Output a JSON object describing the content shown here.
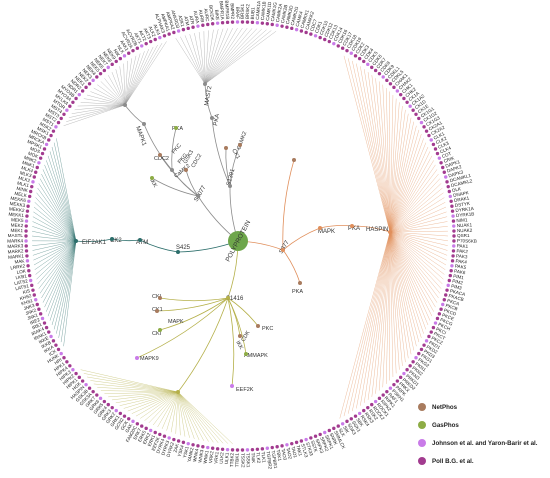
{
  "colors": {
    "NetPhos": "#a87b5e",
    "GasPhos": "#8dac45",
    "Johnson": "#c97be8",
    "Poll": "#a23b8f",
    "teal": "#2c6e6b",
    "orange": "#e08f5c",
    "olive": "#b5b04a",
    "gray": "#8c8c8c",
    "center": "#6ea64b"
  },
  "legend": [
    {
      "key": "NetPhos",
      "label": "NetPhos"
    },
    {
      "key": "GasPhos",
      "label": "GasPhos"
    },
    {
      "key": "Johnson",
      "label": "Johnson et al. and Yaron-Barir et al."
    },
    {
      "key": "Poll",
      "label": "Poll B.G. et al."
    }
  ],
  "center": {
    "label": "POLYPROTEIN"
  },
  "sites": {
    "S425": "S425",
    "S877": "S877",
    "S1416": "S1416",
    "S2077": "S2077",
    "S1391": "S1391"
  },
  "hubs": {
    "EIF2AK1": "EIF2AK1",
    "CK2": "CK2",
    "ATM": "ATM",
    "MAPK": "MAPK",
    "PKA": "PKA",
    "HASPIN": "HASPIN",
    "MAPK1": "MAPK1",
    "MAST2": "MAST2",
    "PKA_top": "PKA"
  },
  "inner_labels": [
    {
      "text": "CDC2",
      "cls": "NetPhos"
    },
    {
      "text": "PKA",
      "cls": "GasPhos"
    },
    {
      "text": "PKC",
      "cls": "NetPhos"
    },
    {
      "text": "PKG",
      "cls": "NetPhos"
    },
    {
      "text": "CaMK2",
      "cls": "NetPhos"
    },
    {
      "text": "GSK3",
      "cls": "NetPhos"
    },
    {
      "text": "CDC2",
      "cls": "NetPhos"
    },
    {
      "text": "IKK",
      "cls": "GasPhos"
    },
    {
      "text": "CK1",
      "cls": "NetPhos"
    },
    {
      "text": "CAMK2",
      "cls": "NetPhos"
    },
    {
      "text": "PKA",
      "cls": "NetPhos"
    },
    {
      "text": "CKI",
      "cls": "NetPhos"
    },
    {
      "text": "CK1",
      "cls": "GasPhos"
    },
    {
      "text": "MAPK",
      "cls": "GasPhos"
    },
    {
      "text": "CKI",
      "cls": "GasPhos"
    },
    {
      "text": "MAPK9",
      "cls": "Johnson"
    },
    {
      "text": "IKK",
      "cls": "NetPhos"
    },
    {
      "text": "CDK",
      "cls": "NetPhos"
    },
    {
      "text": "PKC",
      "cls": "NetPhos"
    },
    {
      "text": "AMMAPK",
      "cls": "GasPhos"
    },
    {
      "text": "EEF2K",
      "cls": "Johnson"
    }
  ],
  "ring_labels": [
    "NIM1",
    "NUAK1",
    "NUAK2",
    "QSR1",
    "P70S6KB",
    "PAK1",
    "PAK2",
    "PAK3",
    "PAK4",
    "PAK5",
    "PAK6",
    "PIM1",
    "PIM2",
    "PIM3",
    "PKACA",
    "PKACB",
    "PKCA",
    "PKCB",
    "PKCD",
    "PKCE",
    "PKCG",
    "PKCH",
    "PKCI",
    "PKCT",
    "PKCZ",
    "PKD1",
    "PKD2",
    "PKD3",
    "PKG1",
    "PKG2",
    "PKN1",
    "PKN2",
    "PKN3",
    "PRKD1",
    "PRKD2",
    "PRKX",
    "PRPK",
    "PSKH1",
    "RAF1",
    "RIPK1",
    "RIPK2",
    "ROCK1",
    "ROCK2",
    "RSK2",
    "RSK3",
    "RSK4",
    "SBK",
    "SGK1",
    "SGK3",
    "SIK",
    "SLK",
    "SMMLCK",
    "SNRK",
    "SRPK1",
    "SRPK2",
    "SRPK3",
    "SSTK",
    "STK33",
    "STLK3",
    "TAK1",
    "TAO1",
    "TAO2",
    "TAO3",
    "TBK1",
    "TGFBR1",
    "TGFBR2",
    "TLK1",
    "TLK2",
    "TNIK",
    "TSSK1",
    "TSSK2",
    "TTBK1",
    "TTBK2",
    "ULK1",
    "ULK2",
    "VRK1",
    "VRK2",
    "WNK1",
    "WNK3",
    "WNK4",
    "YANK2",
    "YSK1",
    "YSK4",
    "ZAK",
    "DYRK2",
    "DYRK3",
    "DYRK4",
    "EEF2K",
    "ERK1",
    "ERK2",
    "ERK5",
    "ERK7",
    "FAM20C",
    "GAK",
    "GCK",
    "GCN2",
    "GRK1",
    "GRK2",
    "GRK3",
    "GRK4",
    "GRK5",
    "GRK6",
    "GRK7",
    "GSK3A",
    "GSK3B",
    "HASPIN",
    "HGK",
    "HIPK1",
    "HIPK2",
    "HIPK3",
    "HIPK4",
    "HPK1",
    "HRI",
    "HUNK",
    "ICK",
    "IKKA",
    "IKKB",
    "IKKE",
    "IRAK1",
    "IRAK4",
    "IRE1",
    "IRE2",
    "JNK1",
    "JNK2",
    "JNK3",
    "KHS1",
    "KHS2",
    "KIS",
    "LATS1",
    "LATS2",
    "LKB1",
    "LOK",
    "LRRK2",
    "MAK",
    "MARK1",
    "MARK2",
    "MARK3",
    "MARK4",
    "MASTL",
    "MEK1",
    "MEK2",
    "MEK5",
    "MEKK1",
    "MEKK2",
    "MEKK3",
    "MEKK6",
    "MELK",
    "MINK",
    "MLK1",
    "MLK2",
    "MLK3",
    "MLK4",
    "MNK1",
    "MNK2",
    "MOK",
    "MOS",
    "MPSK1",
    "MRCKA",
    "MRCKB",
    "MSK1",
    "MSK2",
    "MST1",
    "MST2",
    "MST3",
    "MST4",
    "MTOR",
    "MYLK4",
    "MYO3A",
    "MYO3B",
    "NDR1",
    "NDR2",
    "NEK1",
    "NEK2",
    "NEK3",
    "NEK4",
    "NEK5",
    "NEK6",
    "NEK7",
    "NEK8",
    "NEK9",
    "NIK",
    "NLK",
    "AAK1",
    "ACVR2A",
    "ACVR2B",
    "AKT1",
    "AKT2",
    "AKT3",
    "ALK2",
    "ALK4",
    "ALPHAK3",
    "AMPKA1",
    "AMPKA2",
    "ANKRD3",
    "ASK1",
    "ATM",
    "ATR",
    "AURA",
    "AURB",
    "AURC",
    "BCKDK",
    "BIKE",
    "BMPR1A",
    "BMPR1B",
    "BMPR2",
    "BRAF",
    "BRSK1",
    "BRSK2",
    "BUB1",
    "CAMK1A",
    "CAMK1B",
    "CAMK1D",
    "CAMK1G",
    "CAMK2A",
    "CAMK2B",
    "CAMK2D",
    "CAMK2G",
    "CAMK4",
    "CAMKK1",
    "CAMKK2",
    "CDC7",
    "CDK1",
    "CDK10",
    "CDK12",
    "CDK13",
    "CDK14",
    "CDK16",
    "CDK17",
    "CDK18",
    "CDK19",
    "CDK2",
    "CDK3",
    "CDK4",
    "CDK5",
    "CDK6",
    "CDK7",
    "CDK8",
    "CDK9",
    "CDKL1",
    "CDKL5",
    "CHAK1",
    "CHAK2",
    "CHK1",
    "CHK2",
    "CK1A",
    "CK1A2",
    "CK1D",
    "CK1E",
    "CK1G1",
    "CK1G2",
    "CK1G3",
    "CK2A1",
    "CK2A2",
    "CLK1",
    "CLK2",
    "CLK3",
    "CLK4",
    "COT",
    "CRIK",
    "DAPK1",
    "DAPK2",
    "DAPK3",
    "DCAMKL1",
    "DCAMKL2",
    "DLK",
    "DNAPK",
    "DRAK1",
    "DSTYK",
    "DYRK1A",
    "DYRK1B"
  ]
}
